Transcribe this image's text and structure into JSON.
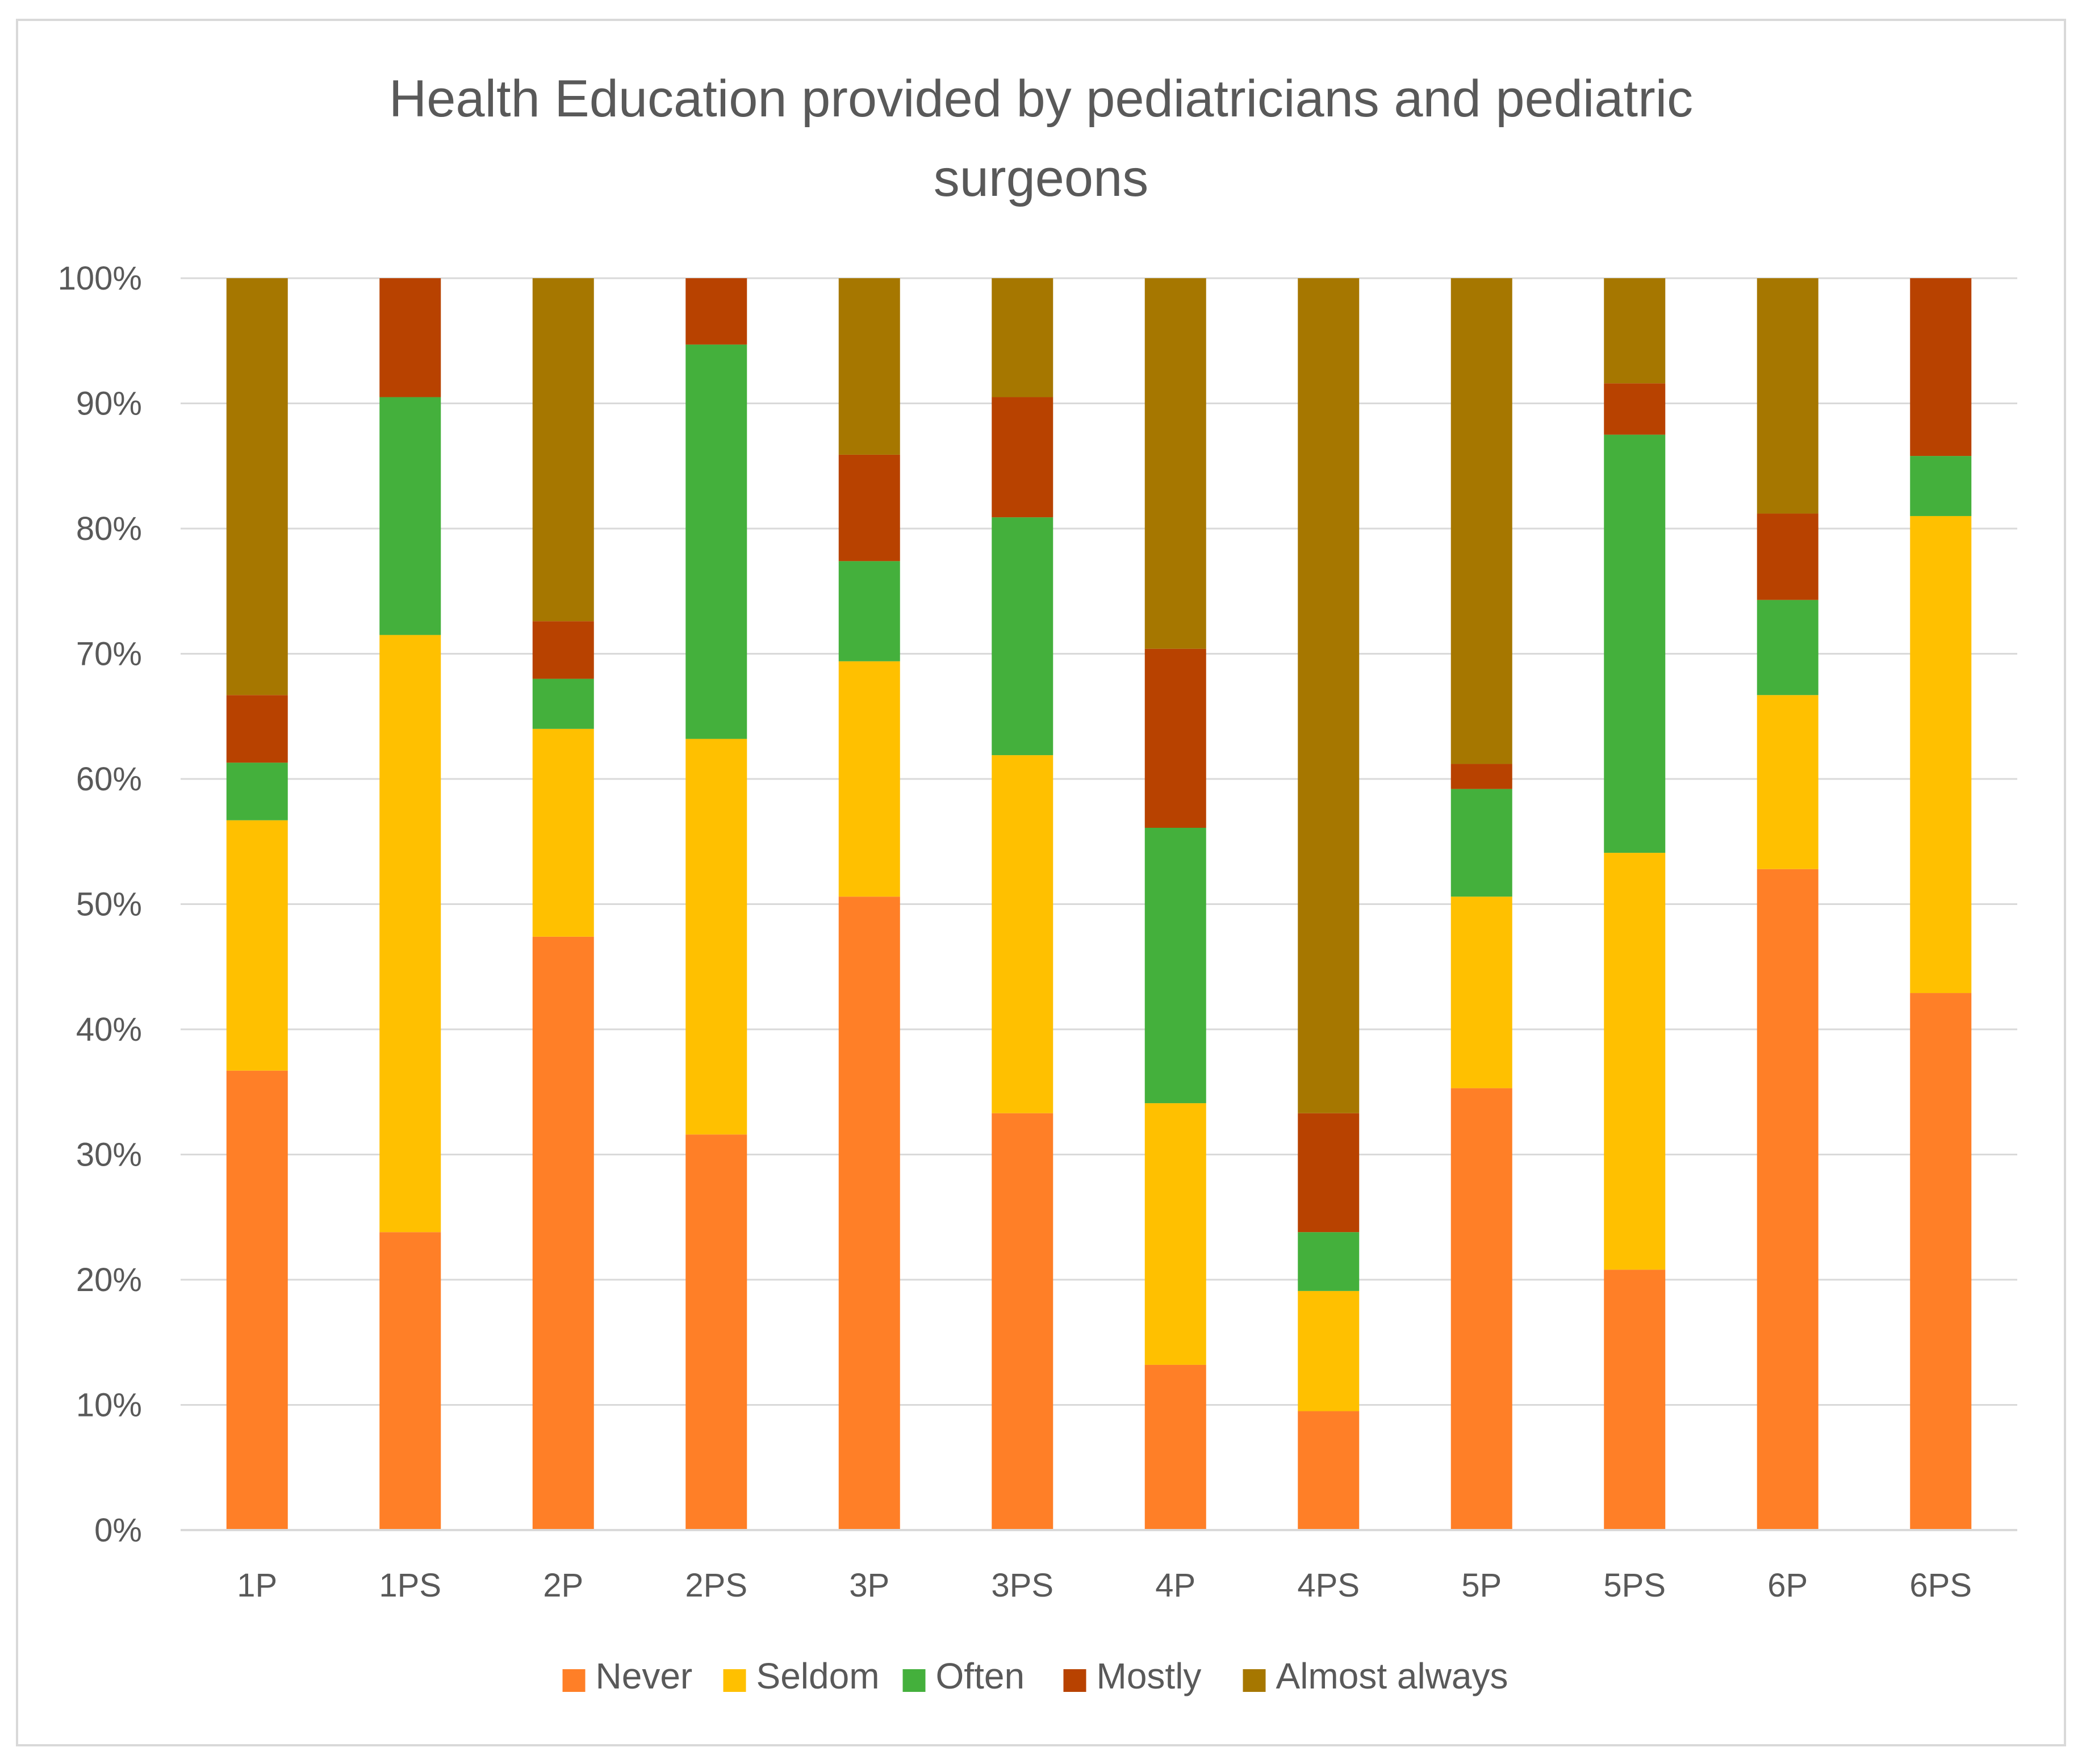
{
  "chart_data": {
    "type": "bar",
    "stacked": "percent",
    "title_lines": [
      "Health Education provided by pediatricians and pediatric",
      "surgeons"
    ],
    "categories": [
      "1P",
      "1PS",
      "2P",
      "2PS",
      "3P",
      "3PS",
      "4P",
      "4PS",
      "5P",
      "5PS",
      "6P",
      "6PS"
    ],
    "ylim": [
      0,
      100
    ],
    "y_ticks": [
      "0%",
      "10%",
      "20%",
      "30%",
      "40%",
      "50%",
      "60%",
      "70%",
      "80%",
      "90%",
      "100%"
    ],
    "grid": true,
    "legend_position": "bottom",
    "series": [
      {
        "name": "Never",
        "color": "#FF7F27",
        "values": [
          36.7,
          23.8,
          47.4,
          31.6,
          50.6,
          33.3,
          13.2,
          9.5,
          35.3,
          20.8,
          52.8,
          42.9
        ]
      },
      {
        "name": "Seldom",
        "color": "#FFC000",
        "values": [
          20.0,
          47.7,
          16.6,
          31.6,
          18.8,
          28.6,
          20.9,
          9.6,
          15.3,
          33.3,
          13.9,
          38.1
        ]
      },
      {
        "name": "Often",
        "color": "#44B03C",
        "values": [
          4.6,
          19.0,
          4.0,
          31.5,
          8.0,
          19.0,
          22.0,
          4.7,
          8.6,
          33.4,
          7.6,
          4.8
        ]
      },
      {
        "name": "Mostly",
        "color": "#B84200",
        "values": [
          5.4,
          9.5,
          4.6,
          5.3,
          8.5,
          9.6,
          14.3,
          9.5,
          2.0,
          4.1,
          6.9,
          14.2
        ]
      },
      {
        "name": "Almost always",
        "color": "#A67700",
        "values": [
          33.3,
          0,
          27.4,
          0,
          14.1,
          9.5,
          29.6,
          66.7,
          38.8,
          8.4,
          18.8,
          0
        ]
      }
    ]
  }
}
